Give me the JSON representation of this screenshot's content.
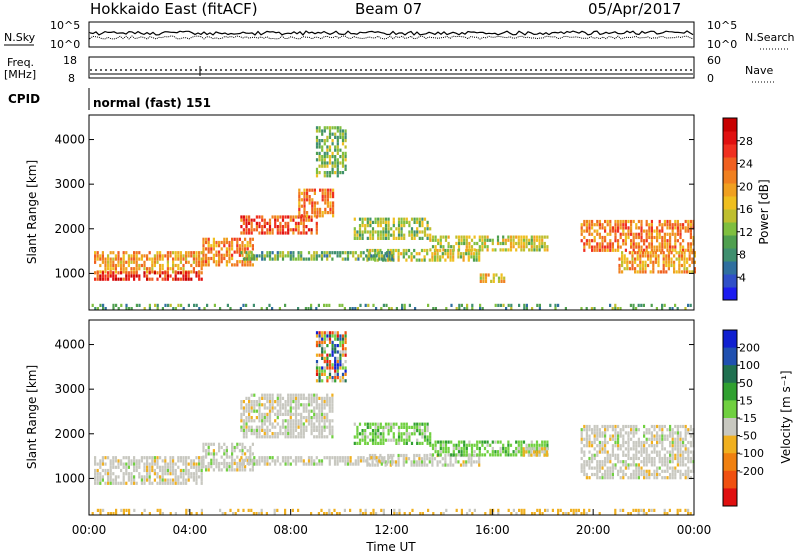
{
  "header": {
    "title": "Hokkaido East (fitACF)",
    "beam": "Beam 07",
    "date": "05/Apr/2017"
  },
  "top_panels": {
    "nsky": {
      "label": "N.Sky",
      "ticks": [
        "10^5",
        "10^0"
      ]
    },
    "nsearch": {
      "label": "N.Search",
      "ticks": [
        "10^5",
        "10^0"
      ]
    },
    "freq": {
      "label_line1": "Freq.",
      "label_line2": "[MHz]",
      "ticks": [
        "18",
        "8"
      ]
    },
    "nave": {
      "label": "Nave",
      "ticks": [
        "60",
        "0"
      ]
    },
    "cpid": {
      "label": "CPID",
      "value": "normal (fast) 151"
    }
  },
  "chart_data": [
    {
      "type": "heatmap",
      "name": "power-panel",
      "ylabel": "Slant Range [km]",
      "xlabel": "",
      "x_ticks": [
        "00:00",
        "04:00",
        "08:00",
        "12:00",
        "16:00",
        "20:00",
        "00:00"
      ],
      "y_ticks": [
        1000,
        2000,
        3000,
        4000
      ],
      "xlim_hours": [
        0,
        24
      ],
      "ylim_km": [
        180,
        4550
      ],
      "colorbar": {
        "label": "Power [dB]",
        "ticks": [
          4,
          8,
          12,
          16,
          20,
          24,
          28
        ],
        "range": [
          0,
          32
        ],
        "colors": [
          "#1c1cf0",
          "#2f4fc8",
          "#2f6f9f",
          "#3f8f6f",
          "#4f9f4f",
          "#7fbf3f",
          "#bfbf2f",
          "#efbf1f",
          "#f0a020",
          "#f08020",
          "#f06020",
          "#f03020",
          "#e01010",
          "#c80000"
        ]
      },
      "regions": [
        {
          "t": [
            0.2,
            4.5
          ],
          "r": [
            1050,
            1500
          ],
          "level": 20
        },
        {
          "t": [
            0.2,
            4.5
          ],
          "r": [
            900,
            1050
          ],
          "level": 26
        },
        {
          "t": [
            4.5,
            6.5
          ],
          "r": [
            1200,
            1800
          ],
          "level": 22
        },
        {
          "t": [
            6.0,
            9.0
          ],
          "r": [
            1900,
            2300
          ],
          "level": 25
        },
        {
          "t": [
            8.3,
            9.7
          ],
          "r": [
            2300,
            2900
          ],
          "level": 22
        },
        {
          "t": [
            9.0,
            10.2
          ],
          "r": [
            3200,
            4300
          ],
          "level": 12
        },
        {
          "t": [
            10.5,
            13.5
          ],
          "r": [
            1750,
            2250
          ],
          "level": 13
        },
        {
          "t": [
            11.0,
            15.5
          ],
          "r": [
            1300,
            1550
          ],
          "level": 14
        },
        {
          "t": [
            13.5,
            18.2
          ],
          "r": [
            1550,
            1850
          ],
          "level": 15
        },
        {
          "t": [
            6.0,
            12.0
          ],
          "r": [
            1350,
            1500
          ],
          "level": 11
        },
        {
          "t": [
            15.5,
            16.5
          ],
          "r": [
            800,
            1000
          ],
          "level": 17
        },
        {
          "t": [
            19.5,
            24.0
          ],
          "r": [
            1500,
            2200
          ],
          "level": 22
        },
        {
          "t": [
            21.0,
            24.0
          ],
          "r": [
            1000,
            1500
          ],
          "level": 20
        },
        {
          "t": [
            0.0,
            24.0
          ],
          "r": [
            200,
            320
          ],
          "level": 10
        }
      ]
    },
    {
      "type": "heatmap",
      "name": "velocity-panel",
      "ylabel": "Slant Range [km]",
      "xlabel": "Time UT",
      "x_ticks": [
        "00:00",
        "04:00",
        "08:00",
        "12:00",
        "16:00",
        "20:00",
        "00:00"
      ],
      "y_ticks": [
        1000,
        2000,
        3000,
        4000
      ],
      "xlim_hours": [
        0,
        24
      ],
      "ylim_km": [
        180,
        4550
      ],
      "colorbar": {
        "label": "Velocity [m s⁻¹]",
        "ticks": [
          "200",
          "100",
          "50",
          "15",
          "-15",
          "-50",
          "-100",
          "-200"
        ],
        "colors": [
          "#1020d0",
          "#2050b0",
          "#207050",
          "#30a030",
          "#70d040",
          "#c8c8c0",
          "#f0b020",
          "#f08010",
          "#f05010",
          "#e01010"
        ]
      },
      "regions": [
        {
          "t": [
            0.2,
            4.5
          ],
          "r": [
            900,
            1500
          ],
          "level": "gray"
        },
        {
          "t": [
            4.5,
            6.5
          ],
          "r": [
            1200,
            1800
          ],
          "level": "gray"
        },
        {
          "t": [
            6.0,
            9.7
          ],
          "r": [
            1900,
            2900
          ],
          "level": "gray"
        },
        {
          "t": [
            9.0,
            10.2
          ],
          "r": [
            3200,
            4300
          ],
          "level": "mixed"
        },
        {
          "t": [
            10.5,
            13.5
          ],
          "r": [
            1750,
            2250
          ],
          "level": "green"
        },
        {
          "t": [
            11.0,
            15.5
          ],
          "r": [
            1300,
            1550
          ],
          "level": "gray"
        },
        {
          "t": [
            13.5,
            18.2
          ],
          "r": [
            1550,
            1850
          ],
          "level": "green"
        },
        {
          "t": [
            17.2,
            18.2
          ],
          "r": [
            1550,
            1700
          ],
          "level": "orange"
        },
        {
          "t": [
            6.0,
            12.0
          ],
          "r": [
            1350,
            1500
          ],
          "level": "gray"
        },
        {
          "t": [
            19.5,
            24.0
          ],
          "r": [
            1000,
            2200
          ],
          "level": "gray"
        },
        {
          "t": [
            0.0,
            24.0
          ],
          "r": [
            200,
            320
          ],
          "level": "orange"
        }
      ]
    }
  ]
}
